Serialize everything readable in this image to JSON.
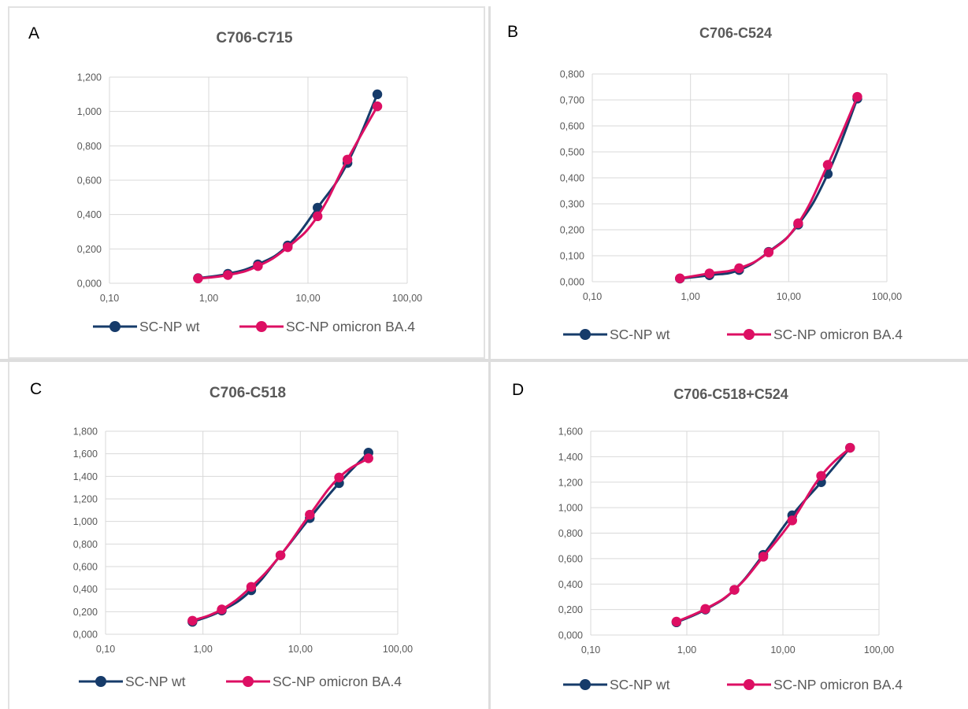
{
  "colors": {
    "series_wt": "#163b6a",
    "series_ba4": "#dd0f63",
    "grid": "#d9d9d9",
    "text": "#595959"
  },
  "chart_data": [
    {
      "panel_label": "A",
      "type": "line",
      "title": "C706-C715",
      "x_scale": "log",
      "xlim": [
        0.1,
        100
      ],
      "x_tick_labels": [
        "0,10",
        "1,00",
        "10,00",
        "100,00"
      ],
      "ylim": [
        0,
        1.2
      ],
      "y_tick_labels": [
        "0,000",
        "0,200",
        "0,400",
        "0,600",
        "0,800",
        "1,000",
        "1,200"
      ],
      "grid": true,
      "legend_position": "bottom",
      "series": [
        {
          "name": "SC-NP wt",
          "x": [
            0.78,
            1.56,
            3.13,
            6.25,
            12.5,
            25,
            50
          ],
          "y": [
            0.03,
            0.055,
            0.11,
            0.22,
            0.44,
            0.7,
            1.1
          ]
        },
        {
          "name": "SC-NP omicron BA.4",
          "x": [
            0.78,
            1.56,
            3.13,
            6.25,
            12.5,
            25,
            50
          ],
          "y": [
            0.028,
            0.048,
            0.1,
            0.21,
            0.39,
            0.72,
            1.03
          ]
        }
      ]
    },
    {
      "panel_label": "B",
      "type": "line",
      "title": "C706-C524",
      "x_scale": "log",
      "xlim": [
        0.1,
        100
      ],
      "x_tick_labels": [
        "0,10",
        "1,00",
        "10,00",
        "100,00"
      ],
      "ylim": [
        0,
        0.8
      ],
      "y_tick_labels": [
        "0,000",
        "0,100",
        "0,200",
        "0,300",
        "0,400",
        "0,500",
        "0,600",
        "0,700",
        "0,800"
      ],
      "grid": true,
      "legend_position": "bottom",
      "series": [
        {
          "name": "SC-NP wt",
          "x": [
            0.78,
            1.56,
            3.13,
            6.25,
            12.5,
            25,
            50
          ],
          "y": [
            0.012,
            0.025,
            0.045,
            0.115,
            0.22,
            0.415,
            0.705
          ]
        },
        {
          "name": "SC-NP omicron BA.4",
          "x": [
            0.78,
            1.56,
            3.13,
            6.25,
            12.5,
            25,
            50
          ],
          "y": [
            0.013,
            0.032,
            0.052,
            0.113,
            0.225,
            0.45,
            0.712
          ]
        }
      ]
    },
    {
      "panel_label": "C",
      "type": "line",
      "title": "C706-C518",
      "x_scale": "log",
      "xlim": [
        0.1,
        100
      ],
      "x_tick_labels": [
        "0,10",
        "1,00",
        "10,00",
        "100,00"
      ],
      "ylim": [
        0,
        1.8
      ],
      "y_tick_labels": [
        "0,000",
        "0,200",
        "0,400",
        "0,600",
        "0,800",
        "1,000",
        "1,200",
        "1,400",
        "1,600",
        "1,800"
      ],
      "grid": true,
      "legend_position": "bottom",
      "series": [
        {
          "name": "SC-NP wt",
          "x": [
            0.78,
            1.56,
            3.13,
            6.25,
            12.5,
            25,
            50
          ],
          "y": [
            0.11,
            0.21,
            0.39,
            0.7,
            1.03,
            1.34,
            1.61
          ]
        },
        {
          "name": "SC-NP omicron BA.4",
          "x": [
            0.78,
            1.56,
            3.13,
            6.25,
            12.5,
            25,
            50
          ],
          "y": [
            0.12,
            0.22,
            0.42,
            0.7,
            1.06,
            1.39,
            1.56
          ]
        }
      ]
    },
    {
      "panel_label": "D",
      "type": "line",
      "title": "C706-C518+C524",
      "x_scale": "log",
      "xlim": [
        0.1,
        100
      ],
      "x_tick_labels": [
        "0,10",
        "1,00",
        "10,00",
        "100,00"
      ],
      "ylim": [
        0,
        1.6
      ],
      "y_tick_labels": [
        "0,000",
        "0,200",
        "0,400",
        "0,600",
        "0,800",
        "1,000",
        "1,200",
        "1,400",
        "1,600"
      ],
      "grid": true,
      "legend_position": "bottom",
      "series": [
        {
          "name": "SC-NP wt",
          "x": [
            0.78,
            1.56,
            3.13,
            6.25,
            12.5,
            25,
            50
          ],
          "y": [
            0.1,
            0.2,
            0.355,
            0.63,
            0.94,
            1.2,
            1.47
          ]
        },
        {
          "name": "SC-NP omicron BA.4",
          "x": [
            0.78,
            1.56,
            3.13,
            6.25,
            12.5,
            25,
            50
          ],
          "y": [
            0.105,
            0.205,
            0.355,
            0.615,
            0.9,
            1.25,
            1.47
          ]
        }
      ]
    }
  ]
}
